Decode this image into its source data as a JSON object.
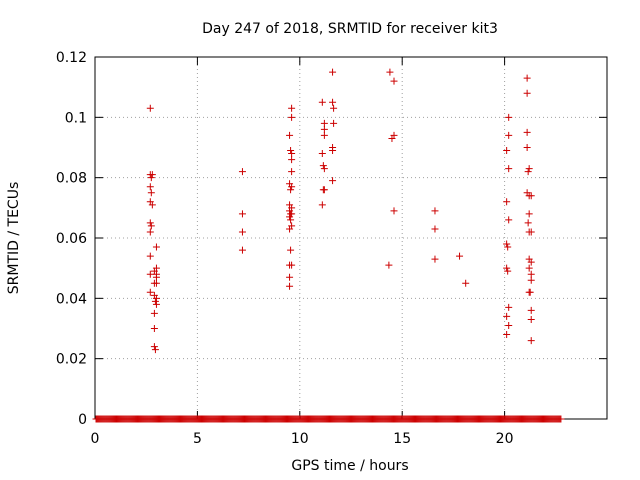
{
  "chart_data": {
    "type": "scatter",
    "title": "Day 247 of 2018, SRMTID for receiver kit3",
    "xlabel": "GPS time / hours",
    "ylabel": "SRMTID / TECUs",
    "xlim": [
      0,
      25
    ],
    "ylim": [
      0,
      0.12
    ],
    "xticks": [
      0,
      5,
      10,
      15,
      20
    ],
    "xtick_labels": [
      "0",
      "5",
      "10",
      "15",
      "20"
    ],
    "yticks": [
      0,
      0.02,
      0.04,
      0.06,
      0.08,
      0.1,
      0.12
    ],
    "ytick_labels": [
      "0",
      "0.02",
      "0.04",
      "0.06",
      "0.08",
      "0.1",
      "0.12"
    ],
    "grid": true,
    "marker": "plus",
    "color": "#cc0000",
    "series": [
      {
        "name": "SRMTID",
        "points": [
          [
            2.7,
            0.103
          ],
          [
            2.7,
            0.081
          ],
          [
            2.8,
            0.081
          ],
          [
            2.75,
            0.08
          ],
          [
            2.7,
            0.077
          ],
          [
            2.75,
            0.075
          ],
          [
            2.7,
            0.072
          ],
          [
            2.8,
            0.071
          ],
          [
            2.7,
            0.065
          ],
          [
            2.75,
            0.064
          ],
          [
            2.7,
            0.062
          ],
          [
            3.0,
            0.057
          ],
          [
            2.7,
            0.054
          ],
          [
            3.0,
            0.05
          ],
          [
            2.9,
            0.049
          ],
          [
            3.0,
            0.048
          ],
          [
            2.7,
            0.048
          ],
          [
            3.0,
            0.047
          ],
          [
            2.9,
            0.045
          ],
          [
            3.0,
            0.045
          ],
          [
            2.7,
            0.042
          ],
          [
            2.9,
            0.041
          ],
          [
            3.0,
            0.04
          ],
          [
            2.95,
            0.039
          ],
          [
            3.0,
            0.038
          ],
          [
            2.9,
            0.035
          ],
          [
            2.9,
            0.03
          ],
          [
            2.9,
            0.024
          ],
          [
            2.95,
            0.023
          ],
          [
            7.2,
            0.082
          ],
          [
            7.2,
            0.068
          ],
          [
            7.2,
            0.062
          ],
          [
            7.2,
            0.056
          ],
          [
            9.6,
            0.103
          ],
          [
            9.6,
            0.1
          ],
          [
            9.5,
            0.094
          ],
          [
            9.55,
            0.089
          ],
          [
            9.6,
            0.088
          ],
          [
            9.6,
            0.086
          ],
          [
            9.6,
            0.082
          ],
          [
            9.5,
            0.078
          ],
          [
            9.6,
            0.077
          ],
          [
            9.55,
            0.076
          ],
          [
            9.5,
            0.071
          ],
          [
            9.6,
            0.07
          ],
          [
            9.5,
            0.069
          ],
          [
            9.55,
            0.068
          ],
          [
            9.6,
            0.068
          ],
          [
            9.5,
            0.067
          ],
          [
            9.55,
            0.066
          ],
          [
            9.6,
            0.064
          ],
          [
            9.5,
            0.063
          ],
          [
            9.55,
            0.056
          ],
          [
            9.5,
            0.051
          ],
          [
            9.6,
            0.051
          ],
          [
            9.5,
            0.047
          ],
          [
            9.5,
            0.044
          ],
          [
            11.1,
            0.105
          ],
          [
            11.2,
            0.098
          ],
          [
            11.2,
            0.096
          ],
          [
            11.2,
            0.094
          ],
          [
            11.1,
            0.088
          ],
          [
            11.15,
            0.084
          ],
          [
            11.2,
            0.083
          ],
          [
            11.15,
            0.076
          ],
          [
            11.2,
            0.076
          ],
          [
            11.1,
            0.071
          ],
          [
            11.6,
            0.115
          ],
          [
            11.6,
            0.105
          ],
          [
            11.65,
            0.103
          ],
          [
            11.65,
            0.098
          ],
          [
            11.6,
            0.09
          ],
          [
            11.6,
            0.089
          ],
          [
            11.6,
            0.079
          ],
          [
            14.4,
            0.115
          ],
          [
            14.6,
            0.112
          ],
          [
            14.5,
            0.093
          ],
          [
            14.6,
            0.094
          ],
          [
            14.6,
            0.069
          ],
          [
            14.35,
            0.051
          ],
          [
            16.6,
            0.069
          ],
          [
            16.6,
            0.063
          ],
          [
            16.6,
            0.053
          ],
          [
            17.8,
            0.054
          ],
          [
            18.1,
            0.045
          ],
          [
            20.2,
            0.1
          ],
          [
            20.2,
            0.094
          ],
          [
            20.1,
            0.089
          ],
          [
            20.2,
            0.083
          ],
          [
            20.1,
            0.072
          ],
          [
            20.2,
            0.066
          ],
          [
            20.1,
            0.058
          ],
          [
            20.15,
            0.057
          ],
          [
            20.1,
            0.05
          ],
          [
            20.15,
            0.049
          ],
          [
            20.2,
            0.037
          ],
          [
            20.1,
            0.034
          ],
          [
            20.2,
            0.031
          ],
          [
            20.1,
            0.028
          ],
          [
            21.1,
            0.113
          ],
          [
            21.1,
            0.108
          ],
          [
            21.1,
            0.095
          ],
          [
            21.1,
            0.09
          ],
          [
            21.2,
            0.083
          ],
          [
            21.15,
            0.082
          ],
          [
            21.1,
            0.075
          ],
          [
            21.3,
            0.074
          ],
          [
            21.2,
            0.074
          ],
          [
            21.2,
            0.068
          ],
          [
            21.15,
            0.065
          ],
          [
            21.2,
            0.062
          ],
          [
            21.3,
            0.062
          ],
          [
            21.2,
            0.053
          ],
          [
            21.3,
            0.052
          ],
          [
            21.2,
            0.05
          ],
          [
            21.3,
            0.048
          ],
          [
            21.3,
            0.046
          ],
          [
            21.2,
            0.042
          ],
          [
            21.25,
            0.042
          ],
          [
            21.3,
            0.036
          ],
          [
            21.3,
            0.033
          ],
          [
            21.3,
            0.026
          ]
        ],
        "zero_baseline_range": [
          0.05,
          22.75
        ],
        "zero_baseline_step": 0.05
      }
    ]
  }
}
